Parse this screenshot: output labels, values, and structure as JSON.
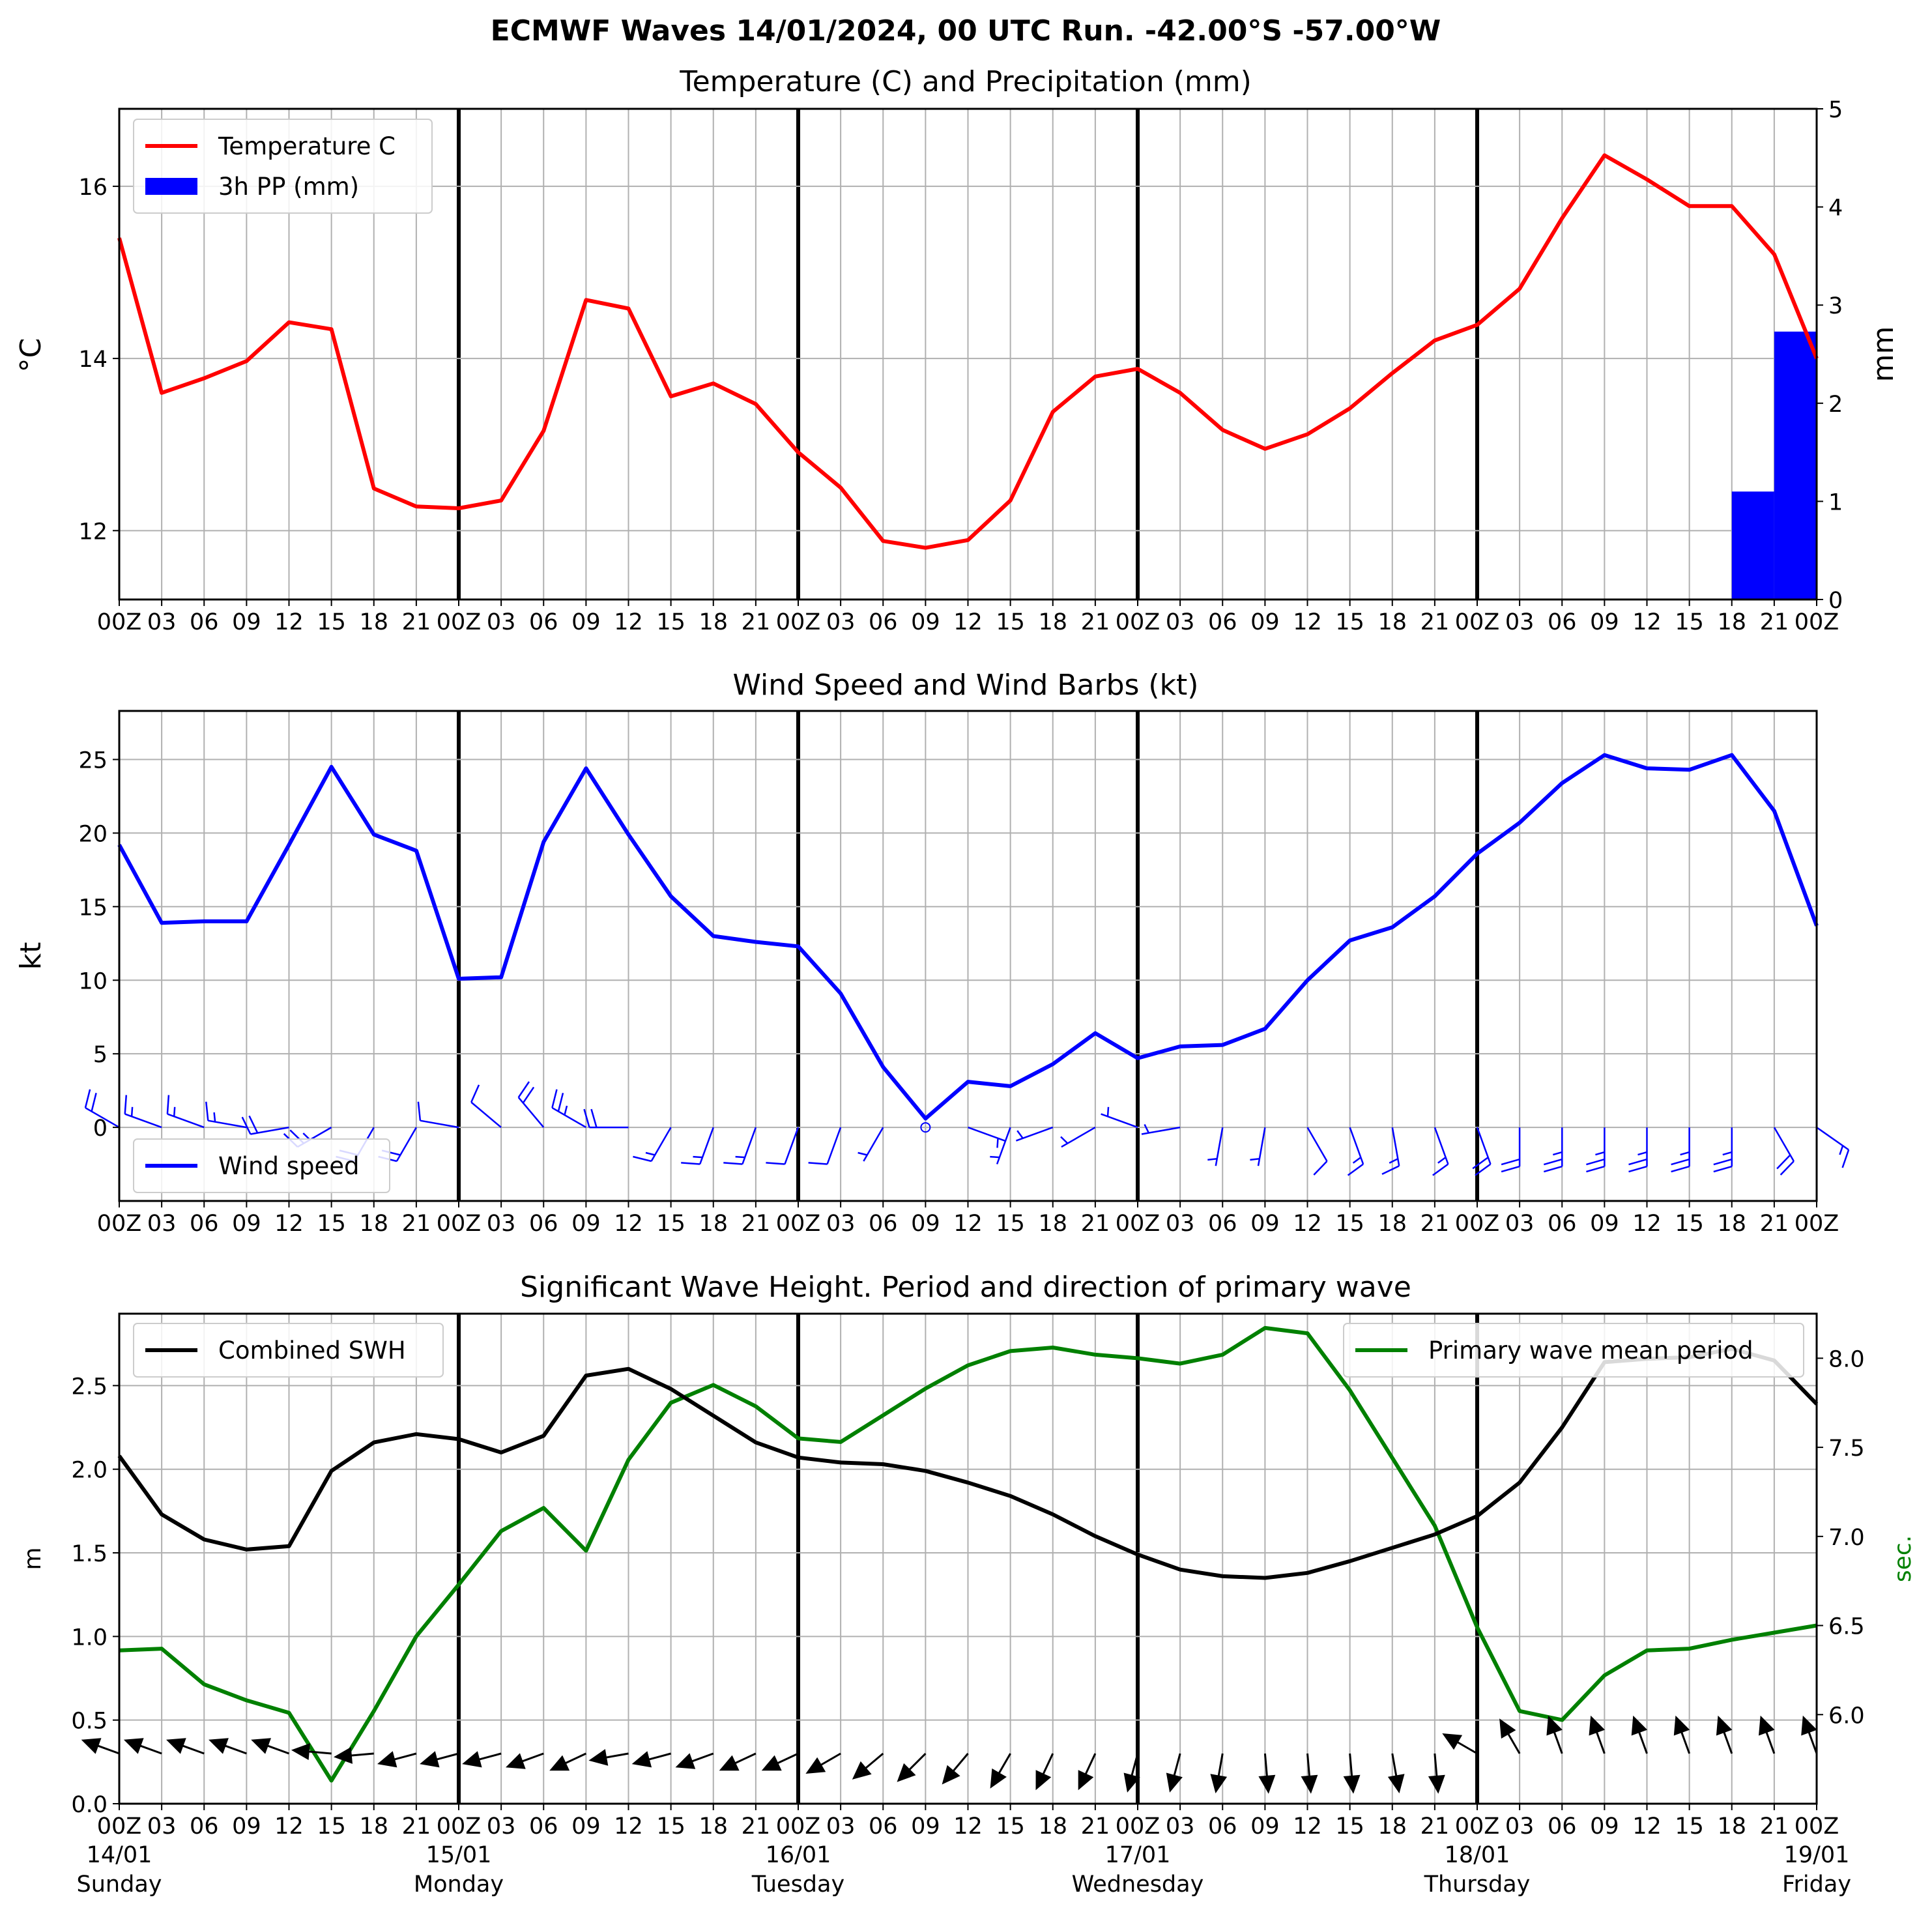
{
  "figure": {
    "title": "ECMWF Waves 14/01/2024, 00 UTC Run. -42.00°S -57.00°W"
  },
  "time_axis": {
    "steps": [
      "00Z",
      "03",
      "06",
      "09",
      "12",
      "15",
      "18",
      "21",
      "00Z",
      "03",
      "06",
      "09",
      "12",
      "15",
      "18",
      "21",
      "00Z",
      "03",
      "06",
      "09",
      "12",
      "15",
      "18",
      "21",
      "00Z",
      "03",
      "06",
      "09",
      "12",
      "15",
      "18",
      "21",
      "00Z",
      "03",
      "06",
      "09",
      "12",
      "15",
      "18",
      "21",
      "00Z"
    ],
    "dates": [
      {
        "index": 0,
        "date": "14/01",
        "day": "Sunday"
      },
      {
        "index": 8,
        "date": "15/01",
        "day": "Monday"
      },
      {
        "index": 16,
        "date": "16/01",
        "day": "Tuesday"
      },
      {
        "index": 24,
        "date": "17/01",
        "day": "Wednesday"
      },
      {
        "index": 32,
        "date": "18/01",
        "day": "Thursday"
      },
      {
        "index": 40,
        "date": "19/01",
        "day": "Friday"
      }
    ]
  },
  "colors": {
    "temperature": "#ff0000",
    "precipitation": "#0000ff",
    "wind": "#0000ff",
    "swh": "#000000",
    "period": "#008000",
    "grid": "#b0b0b0"
  },
  "chart_data": [
    {
      "type": "line",
      "title": "Temperature (C) and Precipitation (mm)",
      "ylabel": "$^\\circ$C",
      "y2label": "mm",
      "ylim": [
        11.2,
        16.9
      ],
      "y2lim": [
        0,
        5
      ],
      "yticks": [
        12,
        14,
        16
      ],
      "y2ticks": [
        0,
        1,
        2,
        3,
        4,
        5
      ],
      "grid": true,
      "legend": "top-left",
      "series": [
        {
          "name": "Temperature C",
          "axis": "left",
          "type": "line",
          "values": [
            15.4,
            13.6,
            13.77,
            13.97,
            14.42,
            14.34,
            12.49,
            12.28,
            12.26,
            12.35,
            13.16,
            14.68,
            14.58,
            13.56,
            13.71,
            13.47,
            12.91,
            12.5,
            11.88,
            11.8,
            11.89,
            12.35,
            13.38,
            13.79,
            13.88,
            13.6,
            13.17,
            12.95,
            13.12,
            13.42,
            13.83,
            14.21,
            14.39,
            14.81,
            15.63,
            16.36,
            16.08,
            15.77,
            15.77,
            15.21,
            14.0
          ]
        },
        {
          "name": "3h PP (mm)",
          "axis": "right",
          "type": "bar",
          "values": [
            0,
            0,
            0,
            0,
            0,
            0,
            0,
            0,
            0,
            0,
            0,
            0,
            0,
            0,
            0,
            0,
            0,
            0,
            0,
            0,
            0,
            0,
            0,
            0,
            0,
            0,
            0,
            0,
            0,
            0,
            0,
            0,
            0,
            0,
            0,
            0,
            0,
            0,
            1.1,
            2.73
          ]
        }
      ]
    },
    {
      "type": "line",
      "title": "Wind Speed and Wind Barbs (kt)",
      "ylabel": "kt",
      "ylim": [
        -5,
        28.3
      ],
      "yticks": [
        0,
        5,
        10,
        15,
        20,
        25
      ],
      "grid": true,
      "legend": "bottom-left",
      "series": [
        {
          "name": "Wind speed",
          "values": [
            19.2,
            13.9,
            14.0,
            14.0,
            19.2,
            24.5,
            19.9,
            18.8,
            10.1,
            10.2,
            19.4,
            24.4,
            19.9,
            15.7,
            13.0,
            12.6,
            12.3,
            9.1,
            4.1,
            0.6,
            3.1,
            2.8,
            4.3,
            6.4,
            4.7,
            5.5,
            5.6,
            6.7,
            10.0,
            12.7,
            13.6,
            15.7,
            18.6,
            20.7,
            23.4,
            25.3,
            24.4,
            24.3,
            25.3,
            21.5,
            13.7
          ]
        },
        {
          "name": "Wind direction (deg)",
          "kind": "barbs",
          "values": [
            300,
            290,
            290,
            280,
            260,
            240,
            210,
            210,
            280,
            310,
            320,
            300,
            270,
            210,
            200,
            200,
            200,
            200,
            210,
            90,
            110,
            200,
            250,
            240,
            290,
            260,
            190,
            190,
            150,
            160,
            170,
            160,
            160,
            180,
            180,
            180,
            180,
            180,
            180,
            150,
            125
          ]
        }
      ]
    },
    {
      "type": "line",
      "title": "Significant Wave Height. Period and direction of primary wave",
      "ylabel": "m",
      "y2label": "sec.",
      "ylim": [
        0,
        2.93
      ],
      "y2lim": [
        5.5,
        8.25
      ],
      "yticks": [
        0.0,
        0.5,
        1.0,
        1.5,
        2.0,
        2.5
      ],
      "y2ticks": [
        6.0,
        6.5,
        7.0,
        7.5,
        8.0
      ],
      "grid": true,
      "legend": [
        "top-left",
        "top-right"
      ],
      "series": [
        {
          "name": "Combined SWH",
          "axis": "left",
          "values": [
            2.08,
            1.73,
            1.58,
            1.52,
            1.54,
            1.99,
            2.16,
            2.21,
            2.18,
            2.1,
            2.2,
            2.56,
            2.6,
            2.48,
            2.32,
            2.16,
            2.07,
            2.04,
            2.03,
            1.99,
            1.92,
            1.84,
            1.73,
            1.6,
            1.49,
            1.4,
            1.36,
            1.35,
            1.38,
            1.45,
            1.53,
            1.61,
            1.72,
            1.92,
            2.25,
            2.64,
            2.66,
            2.67,
            2.72,
            2.65,
            2.39
          ]
        },
        {
          "name": "Primary wave mean period",
          "axis": "right",
          "values": [
            6.36,
            6.37,
            6.17,
            6.08,
            6.01,
            5.63,
            6.02,
            6.44,
            6.73,
            7.03,
            7.16,
            6.92,
            7.43,
            7.75,
            7.85,
            7.73,
            7.55,
            7.53,
            7.68,
            7.83,
            7.96,
            8.04,
            8.06,
            8.02,
            8.0,
            7.97,
            8.02,
            8.17,
            8.14,
            7.82,
            7.44,
            7.06,
            6.49,
            6.02,
            5.97,
            6.22,
            6.36,
            6.37,
            6.42,
            6.46,
            6.5
          ]
        },
        {
          "name": "Primary wave direction (deg)",
          "kind": "arrows",
          "values": [
            290,
            290,
            290,
            290,
            290,
            275,
            265,
            255,
            255,
            255,
            250,
            245,
            260,
            255,
            250,
            245,
            245,
            240,
            230,
            225,
            220,
            210,
            205,
            205,
            195,
            195,
            190,
            175,
            175,
            175,
            170,
            175,
            300,
            330,
            340,
            340,
            340,
            340,
            340,
            340,
            340
          ]
        }
      ]
    }
  ]
}
